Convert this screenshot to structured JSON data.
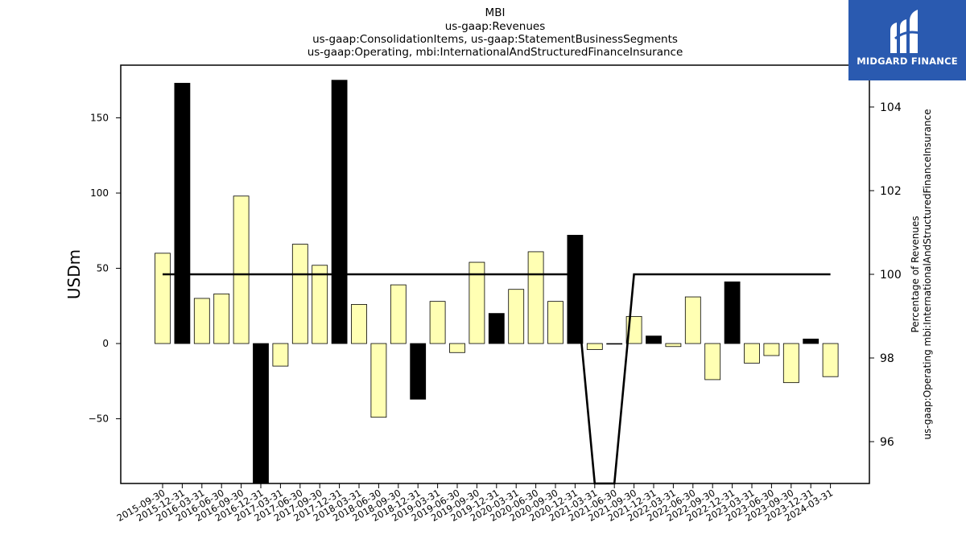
{
  "chart_data": {
    "type": "bar",
    "title_lines": [
      "MBI",
      "us-gaap:Revenues",
      "us-gaap:ConsolidationItems, us-gaap:StatementBusinessSegments",
      "us-gaap:Operating, mbi:InternationalAndStructuredFinanceInsurance"
    ],
    "ylabel_left": "USDm",
    "ylabel_right": [
      "Percentage of Revenues",
      "us-gaap:Operating mbi:InternationalAndStructuredFinanceInsurance"
    ],
    "categories": [
      "2015-09-30",
      "2015-12-31",
      "2016-03-31",
      "2016-06-30",
      "2016-09-30",
      "2016-12-31",
      "2017-03-31",
      "2017-06-30",
      "2017-09-30",
      "2017-12-31",
      "2018-03-31",
      "2018-06-30",
      "2018-09-30",
      "2018-12-31",
      "2019-03-31",
      "2019-06-30",
      "2019-09-30",
      "2019-12-31",
      "2020-03-31",
      "2020-06-30",
      "2020-09-30",
      "2020-12-31",
      "2021-03-31",
      "2021-06-30",
      "2021-09-30",
      "2021-12-31",
      "2022-03-31",
      "2022-06-30",
      "2022-09-30",
      "2022-12-31",
      "2023-03-31",
      "2023-06-30",
      "2023-09-30",
      "2023-12-31",
      "2024-03-31"
    ],
    "series": [
      {
        "values": [
          60,
          173,
          30,
          33,
          98,
          -95,
          -15,
          66,
          52,
          175,
          26,
          -49,
          39,
          -37,
          28,
          -6,
          54,
          20,
          36,
          61,
          28,
          72,
          -4,
          0,
          18,
          5,
          -2,
          31,
          -24,
          41,
          -13,
          -8,
          -26,
          3,
          -22
        ],
        "colors": [
          "light",
          "dark",
          "light",
          "light",
          "light",
          "dark",
          "light",
          "light",
          "light",
          "dark",
          "light",
          "light",
          "light",
          "dark",
          "light",
          "light",
          "light",
          "dark",
          "light",
          "light",
          "light",
          "dark",
          "light",
          "light",
          "light",
          "dark",
          "light",
          "light",
          "light",
          "dark",
          "light",
          "light",
          "light",
          "dark",
          "light"
        ]
      },
      {
        "axis": "right",
        "line_values": [
          100,
          100,
          100,
          100,
          100,
          100,
          100,
          100,
          100,
          100,
          100,
          100,
          100,
          100,
          100,
          100,
          100,
          100,
          100,
          100,
          100,
          100,
          null,
          null,
          100,
          100,
          100,
          100,
          100,
          100,
          100,
          100,
          100,
          100,
          100
        ]
      }
    ],
    "ylim_left": [
      -93,
      185
    ],
    "yticks_left": [
      -50,
      0,
      50,
      100,
      150
    ],
    "ytick_labels_left": [
      "−50",
      "0",
      "50",
      "100",
      "150"
    ],
    "ylim_right": [
      95.0,
      105.0
    ],
    "yticks_right": [
      96,
      98,
      100,
      102,
      104
    ],
    "ytick_labels_right": [
      "96",
      "98",
      "100",
      "102",
      "104"
    ],
    "grid": false,
    "colors": {
      "light": "#ffffb3",
      "dark": "#000000",
      "line": "#000000"
    }
  },
  "logo": {
    "text": "MIDGARD FINANCE",
    "background": "#2a5ab0"
  }
}
